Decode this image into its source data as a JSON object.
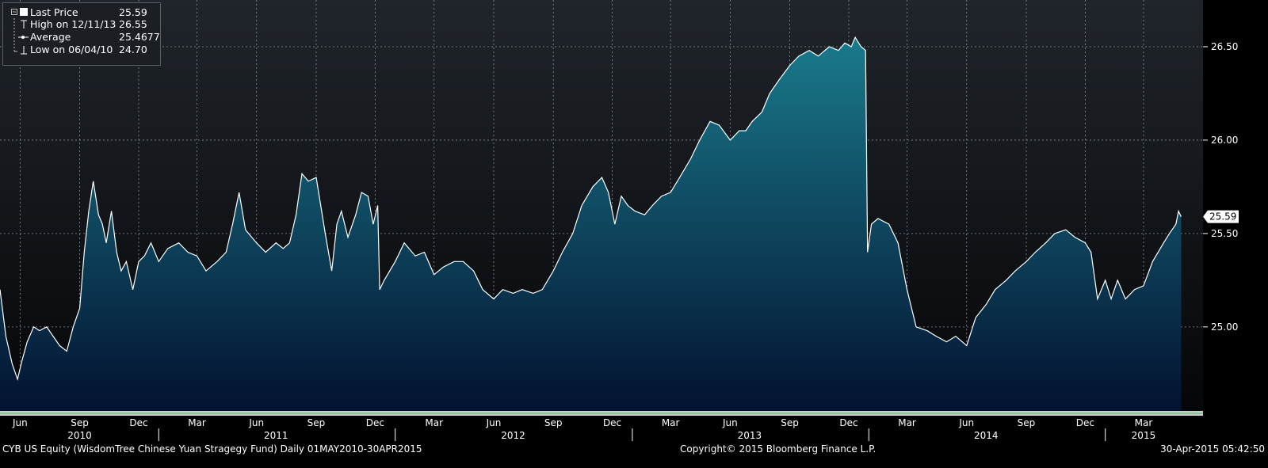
{
  "legend": {
    "last_label": "Last Price",
    "last_value": "25.59",
    "high_label": "High on 12/11/13",
    "high_value": "26.55",
    "avg_label": "Average",
    "avg_value": "25.4677",
    "low_label": "Low on 06/04/10",
    "low_value": "24.70"
  },
  "footer": {
    "left": "CYB US Equity (WisdomTree Chinese Yuan Stragegy Fund)  Daily 01MAY2010-30APR2015",
    "center": "Copyright© 2015 Bloomberg Finance L.P.",
    "right": "30-Apr-2015 05:42:50"
  },
  "colors": {
    "area_top": "#1a7a8c",
    "area_bottom": "#031230",
    "line": "#ffffff",
    "background_top": "#20252b",
    "background_bottom": "#050608",
    "grid": "#8a9096"
  },
  "chart_data": {
    "type": "area",
    "title": "",
    "xlabel": "",
    "ylabel": "",
    "xlim": [
      "2010-05-01",
      "2015-04-30"
    ],
    "ylim": [
      24.55,
      26.75
    ],
    "grid": true,
    "y_axis_position": "right",
    "legend_position": "top-left",
    "y_ticks": [
      "25.00",
      "25.50",
      "26.00",
      "26.50"
    ],
    "last_price_tag": "25.59",
    "x_month_labels": [
      {
        "date": "2010-06-01",
        "label": "Jun"
      },
      {
        "date": "2010-09-01",
        "label": "Sep"
      },
      {
        "date": "2010-12-01",
        "label": "Dec"
      },
      {
        "date": "2011-03-01",
        "label": "Mar"
      },
      {
        "date": "2011-06-01",
        "label": "Jun"
      },
      {
        "date": "2011-09-01",
        "label": "Sep"
      },
      {
        "date": "2011-12-01",
        "label": "Dec"
      },
      {
        "date": "2012-03-01",
        "label": "Mar"
      },
      {
        "date": "2012-06-01",
        "label": "Jun"
      },
      {
        "date": "2012-09-01",
        "label": "Sep"
      },
      {
        "date": "2012-12-01",
        "label": "Dec"
      },
      {
        "date": "2013-03-01",
        "label": "Mar"
      },
      {
        "date": "2013-06-01",
        "label": "Jun"
      },
      {
        "date": "2013-09-01",
        "label": "Sep"
      },
      {
        "date": "2013-12-01",
        "label": "Dec"
      },
      {
        "date": "2014-03-01",
        "label": "Mar"
      },
      {
        "date": "2014-06-01",
        "label": "Jun"
      },
      {
        "date": "2014-09-01",
        "label": "Sep"
      },
      {
        "date": "2014-12-01",
        "label": "Dec"
      },
      {
        "date": "2015-03-01",
        "label": "Mar"
      }
    ],
    "x_year_labels": [
      {
        "date": "2010-09-01",
        "label": "2010"
      },
      {
        "date": "2011-07-01",
        "label": "2011"
      },
      {
        "date": "2012-07-01",
        "label": "2012"
      },
      {
        "date": "2013-07-01",
        "label": "2013"
      },
      {
        "date": "2014-07-01",
        "label": "2014"
      },
      {
        "date": "2015-03-01",
        "label": "2015"
      }
    ],
    "series": [
      {
        "x": [
          "2010-05-01",
          "2010-05-10",
          "2010-05-20",
          "2010-05-28",
          "2010-06-04",
          "2010-06-12",
          "2010-06-22",
          "2010-07-01",
          "2010-07-12",
          "2010-07-22",
          "2010-08-01",
          "2010-08-12",
          "2010-08-22",
          "2010-09-01",
          "2010-09-08",
          "2010-09-15",
          "2010-09-22",
          "2010-09-30",
          "2010-10-06",
          "2010-10-12",
          "2010-10-20",
          "2010-10-28",
          "2010-11-04",
          "2010-11-12",
          "2010-11-22",
          "2010-12-01",
          "2010-12-10",
          "2010-12-20",
          "2011-01-01",
          "2011-01-15",
          "2011-02-01",
          "2011-02-15",
          "2011-03-01",
          "2011-03-15",
          "2011-04-01",
          "2011-04-15",
          "2011-04-25",
          "2011-05-05",
          "2011-05-15",
          "2011-06-01",
          "2011-06-15",
          "2011-07-01",
          "2011-07-12",
          "2011-07-22",
          "2011-08-01",
          "2011-08-10",
          "2011-08-20",
          "2011-09-01",
          "2011-09-15",
          "2011-09-25",
          "2011-10-03",
          "2011-10-10",
          "2011-10-20",
          "2011-11-01",
          "2011-11-10",
          "2011-11-20",
          "2011-11-28",
          "2011-12-05",
          "2011-12-08",
          "2011-12-15",
          "2012-01-01",
          "2012-01-15",
          "2012-02-01",
          "2012-02-15",
          "2012-03-01",
          "2012-03-15",
          "2012-04-01",
          "2012-04-15",
          "2012-05-01",
          "2012-05-15",
          "2012-06-01",
          "2012-06-15",
          "2012-07-01",
          "2012-07-15",
          "2012-08-01",
          "2012-08-15",
          "2012-09-01",
          "2012-09-15",
          "2012-10-01",
          "2012-10-15",
          "2012-11-01",
          "2012-11-15",
          "2012-11-25",
          "2012-12-05",
          "2012-12-15",
          "2012-12-25",
          "2013-01-05",
          "2013-01-20",
          "2013-02-01",
          "2013-02-15",
          "2013-03-01",
          "2013-03-15",
          "2013-04-01",
          "2013-04-15",
          "2013-05-01",
          "2013-05-15",
          "2013-06-01",
          "2013-06-15",
          "2013-06-25",
          "2013-07-05",
          "2013-07-20",
          "2013-08-01",
          "2013-08-15",
          "2013-09-01",
          "2013-09-15",
          "2013-10-01",
          "2013-10-15",
          "2013-11-01",
          "2013-11-15",
          "2013-11-25",
          "2013-12-05",
          "2013-12-11",
          "2013-12-20",
          "2013-12-27",
          "2013-12-30",
          "2014-01-05",
          "2014-01-15",
          "2014-02-01",
          "2014-02-15",
          "2014-03-01",
          "2014-03-15",
          "2014-04-01",
          "2014-04-15",
          "2014-05-01",
          "2014-05-15",
          "2014-06-01",
          "2014-06-15",
          "2014-07-01",
          "2014-07-15",
          "2014-08-01",
          "2014-08-15",
          "2014-09-01",
          "2014-09-15",
          "2014-10-01",
          "2014-10-15",
          "2014-11-01",
          "2014-11-15",
          "2014-12-01",
          "2014-12-10",
          "2014-12-20",
          "2015-01-01",
          "2015-01-10",
          "2015-01-20",
          "2015-02-01",
          "2015-02-15",
          "2015-03-01",
          "2015-03-15",
          "2015-04-01",
          "2015-04-10",
          "2015-04-20",
          "2015-04-24",
          "2015-04-28"
        ],
        "values": [
          25.2,
          24.95,
          24.8,
          24.72,
          24.82,
          24.92,
          25.0,
          24.98,
          25.0,
          24.95,
          24.9,
          24.87,
          25.0,
          25.1,
          25.4,
          25.62,
          25.78,
          25.6,
          25.55,
          25.45,
          25.62,
          25.4,
          25.3,
          25.35,
          25.2,
          25.35,
          25.38,
          25.45,
          25.35,
          25.42,
          25.45,
          25.4,
          25.38,
          25.3,
          25.35,
          25.4,
          25.55,
          25.72,
          25.52,
          25.45,
          25.4,
          25.45,
          25.42,
          25.45,
          25.6,
          25.82,
          25.78,
          25.8,
          25.5,
          25.3,
          25.55,
          25.62,
          25.48,
          25.6,
          25.72,
          25.7,
          25.55,
          25.65,
          25.2,
          25.25,
          25.35,
          25.45,
          25.38,
          25.4,
          25.28,
          25.32,
          25.35,
          25.35,
          25.3,
          25.2,
          25.15,
          25.2,
          25.18,
          25.2,
          25.18,
          25.2,
          25.3,
          25.4,
          25.5,
          25.65,
          25.75,
          25.8,
          25.72,
          25.55,
          25.7,
          25.65,
          25.62,
          25.6,
          25.65,
          25.7,
          25.72,
          25.8,
          25.9,
          26.0,
          26.1,
          26.08,
          26.0,
          26.05,
          26.05,
          26.1,
          26.15,
          26.25,
          26.32,
          26.4,
          26.45,
          26.48,
          26.45,
          26.5,
          26.48,
          26.52,
          26.5,
          26.55,
          26.5,
          26.48,
          25.4,
          25.55,
          25.58,
          25.55,
          25.45,
          25.2,
          25.0,
          24.98,
          24.95,
          24.92,
          24.95,
          24.9,
          25.05,
          25.12,
          25.2,
          25.25,
          25.3,
          25.35,
          25.4,
          25.45,
          25.5,
          25.52,
          25.48,
          25.45,
          25.4,
          25.15,
          25.25,
          25.15,
          25.25,
          25.15,
          25.2,
          25.22,
          25.35,
          25.45,
          25.5,
          25.55,
          25.62,
          25.59
        ]
      }
    ]
  }
}
